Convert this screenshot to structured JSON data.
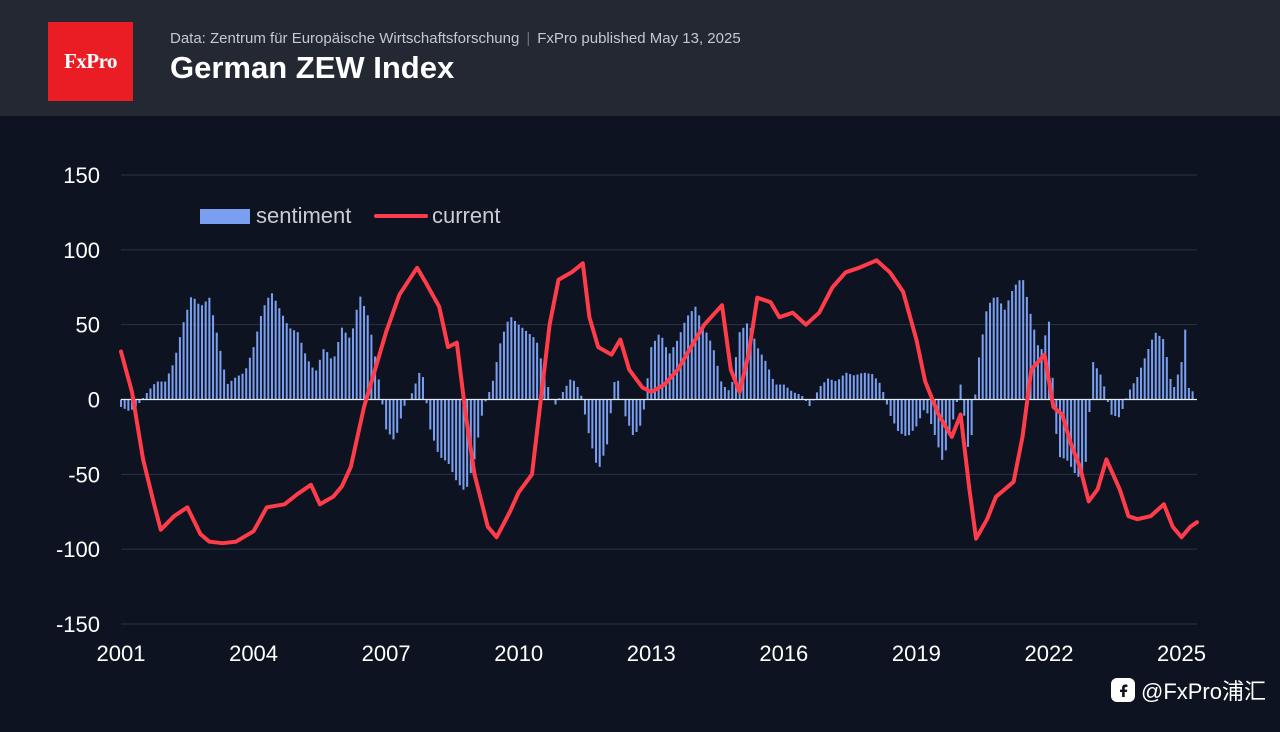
{
  "header": {
    "logo_text": "FxPro",
    "source": "Data: Zentrum für Europäische Wirtschaftsforschung",
    "published": "FxPro published May 13, 2025",
    "title": "German ZEW Index"
  },
  "watermark": {
    "text": "@FxPro浦汇",
    "icon": "social-logo-icon"
  },
  "colors": {
    "background": "#0d1320",
    "header": "#232833",
    "brand": "#ea1c24",
    "sentiment": "#7b9ff0",
    "current": "#ff3c4a",
    "grid": "#2b3343",
    "text": "#ffffff"
  },
  "chart_data": {
    "type": "bar+line",
    "x_ticks": [
      2001,
      2004,
      2007,
      2010,
      2013,
      2016,
      2019,
      2022,
      2025
    ],
    "x_tick_labels": [
      "2001",
      "2004",
      "2007",
      "2010",
      "2013",
      "2016",
      "2019",
      "2022",
      "2025"
    ],
    "xlim": [
      2001.0,
      2025.35
    ],
    "ylim": [
      -150,
      150
    ],
    "y_ticks": [
      150,
      100,
      50,
      0,
      -50,
      -100,
      -150
    ],
    "y_tick_labels": [
      "150",
      "100",
      "50",
      "0",
      "-50",
      "-100",
      "-150"
    ],
    "grid": "horizontal",
    "legend": {
      "position": "top-left",
      "entries": [
        "sentiment",
        "current"
      ]
    },
    "series": [
      {
        "name": "sentiment",
        "type": "bar",
        "points": [
          [
            2001.0,
            -5
          ],
          [
            2001.2,
            -8
          ],
          [
            2001.4,
            -3
          ],
          [
            2001.6,
            5
          ],
          [
            2001.8,
            12
          ],
          [
            2002.0,
            12
          ],
          [
            2002.2,
            25
          ],
          [
            2002.4,
            50
          ],
          [
            2002.6,
            70
          ],
          [
            2002.8,
            62
          ],
          [
            2003.0,
            68
          ],
          [
            2003.2,
            40
          ],
          [
            2003.4,
            10
          ],
          [
            2003.6,
            15
          ],
          [
            2003.8,
            18
          ],
          [
            2004.0,
            35
          ],
          [
            2004.2,
            60
          ],
          [
            2004.4,
            72
          ],
          [
            2004.6,
            60
          ],
          [
            2004.8,
            48
          ],
          [
            2005.0,
            45
          ],
          [
            2005.2,
            28
          ],
          [
            2005.4,
            18
          ],
          [
            2005.6,
            35
          ],
          [
            2005.8,
            25
          ],
          [
            2006.0,
            48
          ],
          [
            2006.2,
            40
          ],
          [
            2006.4,
            70
          ],
          [
            2006.6,
            55
          ],
          [
            2006.8,
            20
          ],
          [
            2007.0,
            -20
          ],
          [
            2007.2,
            -28
          ],
          [
            2007.4,
            -5
          ],
          [
            2007.6,
            5
          ],
          [
            2007.8,
            22
          ],
          [
            2008.0,
            -20
          ],
          [
            2008.2,
            -38
          ],
          [
            2008.4,
            -42
          ],
          [
            2008.6,
            -55
          ],
          [
            2008.8,
            -62
          ],
          [
            2009.0,
            -40
          ],
          [
            2009.2,
            -5
          ],
          [
            2009.4,
            10
          ],
          [
            2009.6,
            40
          ],
          [
            2009.8,
            56
          ],
          [
            2010.0,
            50
          ],
          [
            2010.2,
            45
          ],
          [
            2010.4,
            40
          ],
          [
            2010.6,
            15
          ],
          [
            2010.8,
            -5
          ],
          [
            2011.0,
            5
          ],
          [
            2011.2,
            15
          ],
          [
            2011.4,
            5
          ],
          [
            2011.6,
            -25
          ],
          [
            2011.8,
            -48
          ],
          [
            2012.0,
            -30
          ],
          [
            2012.2,
            20
          ],
          [
            2012.4,
            -10
          ],
          [
            2012.6,
            -25
          ],
          [
            2012.8,
            -15
          ],
          [
            2013.0,
            35
          ],
          [
            2013.2,
            45
          ],
          [
            2013.4,
            30
          ],
          [
            2013.6,
            40
          ],
          [
            2013.8,
            55
          ],
          [
            2014.0,
            62
          ],
          [
            2014.2,
            48
          ],
          [
            2014.4,
            35
          ],
          [
            2014.6,
            10
          ],
          [
            2014.8,
            5
          ],
          [
            2015.0,
            45
          ],
          [
            2015.2,
            52
          ],
          [
            2015.4,
            35
          ],
          [
            2015.6,
            25
          ],
          [
            2015.8,
            10
          ],
          [
            2016.0,
            10
          ],
          [
            2016.2,
            5
          ],
          [
            2016.4,
            3
          ],
          [
            2016.6,
            -5
          ],
          [
            2016.8,
            8
          ],
          [
            2017.0,
            14
          ],
          [
            2017.2,
            12
          ],
          [
            2017.4,
            18
          ],
          [
            2017.6,
            16
          ],
          [
            2017.8,
            18
          ],
          [
            2018.0,
            17
          ],
          [
            2018.2,
            10
          ],
          [
            2018.4,
            -10
          ],
          [
            2018.6,
            -22
          ],
          [
            2018.8,
            -25
          ],
          [
            2019.0,
            -18
          ],
          [
            2019.2,
            -5
          ],
          [
            2019.4,
            -22
          ],
          [
            2019.6,
            -42
          ],
          [
            2019.8,
            -18
          ],
          [
            2020.0,
            10
          ],
          [
            2020.2,
            -40
          ],
          [
            2020.4,
            25
          ],
          [
            2020.6,
            62
          ],
          [
            2020.8,
            70
          ],
          [
            2021.0,
            60
          ],
          [
            2021.2,
            75
          ],
          [
            2021.4,
            82
          ],
          [
            2021.6,
            55
          ],
          [
            2021.8,
            30
          ],
          [
            2022.0,
            52
          ],
          [
            2022.2,
            -38
          ],
          [
            2022.4,
            -40
          ],
          [
            2022.6,
            -50
          ],
          [
            2022.8,
            -55
          ],
          [
            2023.0,
            25
          ],
          [
            2023.2,
            15
          ],
          [
            2023.4,
            -10
          ],
          [
            2023.6,
            -12
          ],
          [
            2023.8,
            5
          ],
          [
            2024.0,
            15
          ],
          [
            2024.2,
            30
          ],
          [
            2024.4,
            45
          ],
          [
            2024.6,
            40
          ],
          [
            2024.8,
            5
          ],
          [
            2025.0,
            25
          ],
          [
            2025.1,
            51
          ],
          [
            2025.2,
            -14
          ],
          [
            2025.3,
            25
          ]
        ]
      },
      {
        "name": "current",
        "type": "line",
        "points": [
          [
            2001.0,
            32
          ],
          [
            2001.25,
            5
          ],
          [
            2001.5,
            -40
          ],
          [
            2001.75,
            -70
          ],
          [
            2001.9,
            -87
          ],
          [
            2002.2,
            -78
          ],
          [
            2002.5,
            -72
          ],
          [
            2002.8,
            -90
          ],
          [
            2003.0,
            -95
          ],
          [
            2003.3,
            -96
          ],
          [
            2003.6,
            -95
          ],
          [
            2004.0,
            -88
          ],
          [
            2004.3,
            -72
          ],
          [
            2004.7,
            -70
          ],
          [
            2005.0,
            -63
          ],
          [
            2005.3,
            -57
          ],
          [
            2005.5,
            -70
          ],
          [
            2005.8,
            -65
          ],
          [
            2006.0,
            -58
          ],
          [
            2006.2,
            -45
          ],
          [
            2006.5,
            -5
          ],
          [
            2006.8,
            25
          ],
          [
            2007.0,
            45
          ],
          [
            2007.3,
            70
          ],
          [
            2007.7,
            88
          ],
          [
            2007.9,
            78
          ],
          [
            2008.2,
            62
          ],
          [
            2008.4,
            35
          ],
          [
            2008.6,
            38
          ],
          [
            2008.8,
            -10
          ],
          [
            2009.0,
            -50
          ],
          [
            2009.3,
            -85
          ],
          [
            2009.5,
            -92
          ],
          [
            2009.8,
            -75
          ],
          [
            2010.0,
            -62
          ],
          [
            2010.3,
            -50
          ],
          [
            2010.5,
            0
          ],
          [
            2010.7,
            50
          ],
          [
            2010.9,
            80
          ],
          [
            2011.2,
            85
          ],
          [
            2011.45,
            91
          ],
          [
            2011.6,
            55
          ],
          [
            2011.8,
            35
          ],
          [
            2012.1,
            30
          ],
          [
            2012.3,
            40
          ],
          [
            2012.5,
            20
          ],
          [
            2012.8,
            8
          ],
          [
            2013.0,
            5
          ],
          [
            2013.3,
            10
          ],
          [
            2013.6,
            20
          ],
          [
            2013.9,
            35
          ],
          [
            2014.2,
            50
          ],
          [
            2014.6,
            63
          ],
          [
            2014.8,
            20
          ],
          [
            2015.0,
            5
          ],
          [
            2015.2,
            30
          ],
          [
            2015.4,
            68
          ],
          [
            2015.7,
            65
          ],
          [
            2015.9,
            55
          ],
          [
            2016.2,
            58
          ],
          [
            2016.5,
            50
          ],
          [
            2016.8,
            58
          ],
          [
            2017.1,
            75
          ],
          [
            2017.4,
            85
          ],
          [
            2017.7,
            88
          ],
          [
            2018.1,
            93
          ],
          [
            2018.4,
            85
          ],
          [
            2018.7,
            72
          ],
          [
            2019.0,
            40
          ],
          [
            2019.2,
            12
          ],
          [
            2019.5,
            -10
          ],
          [
            2019.8,
            -25
          ],
          [
            2020.0,
            -10
          ],
          [
            2020.2,
            -60
          ],
          [
            2020.35,
            -93
          ],
          [
            2020.6,
            -80
          ],
          [
            2020.8,
            -65
          ],
          [
            2021.0,
            -60
          ],
          [
            2021.2,
            -55
          ],
          [
            2021.4,
            -25
          ],
          [
            2021.6,
            20
          ],
          [
            2021.9,
            30
          ],
          [
            2022.1,
            -5
          ],
          [
            2022.3,
            -10
          ],
          [
            2022.5,
            -30
          ],
          [
            2022.7,
            -45
          ],
          [
            2022.9,
            -68
          ],
          [
            2023.1,
            -60
          ],
          [
            2023.3,
            -40
          ],
          [
            2023.6,
            -60
          ],
          [
            2023.8,
            -78
          ],
          [
            2024.0,
            -80
          ],
          [
            2024.3,
            -78
          ],
          [
            2024.6,
            -70
          ],
          [
            2024.8,
            -85
          ],
          [
            2025.0,
            -92
          ],
          [
            2025.2,
            -85
          ],
          [
            2025.35,
            -82
          ]
        ]
      }
    ]
  }
}
